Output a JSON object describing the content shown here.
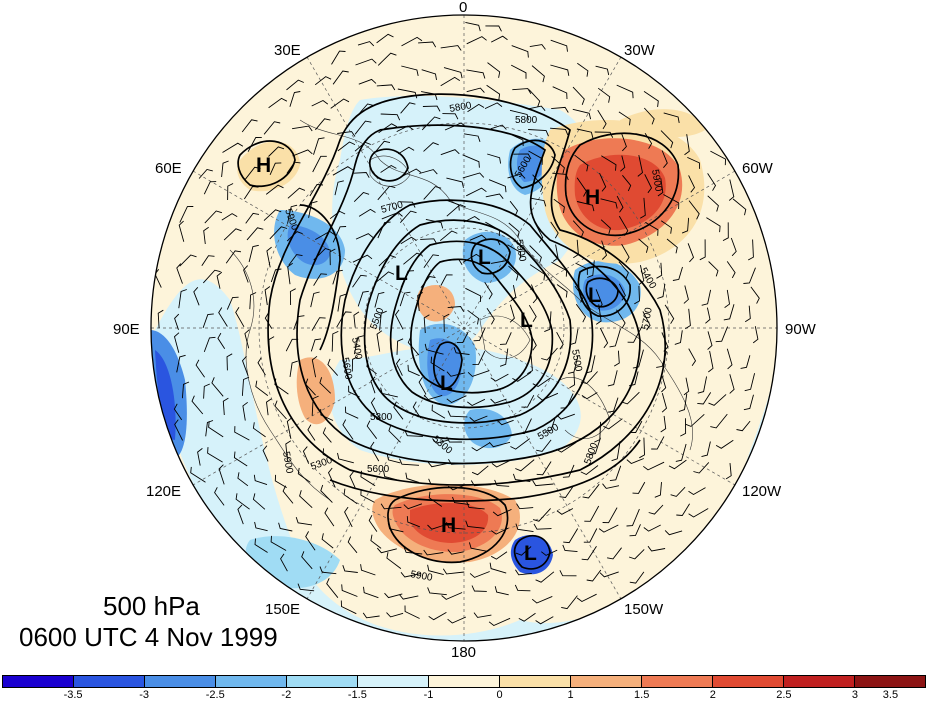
{
  "map": {
    "projection": "north-polar-stereographic",
    "longitude_labels": [
      "0",
      "30W",
      "60W",
      "90W",
      "120W",
      "150W",
      "180",
      "150E",
      "120E",
      "90E",
      "60E",
      "30E"
    ],
    "contour_labels": [
      "5800",
      "5800",
      "5900",
      "5900",
      "5700",
      "5600",
      "5500",
      "5400",
      "5300",
      "5300",
      "5500",
      "5600",
      "5800",
      "5900",
      "5900",
      "5600",
      "5700",
      "5900",
      "5500",
      "5400",
      "5300"
    ],
    "centers": [
      {
        "type": "H",
        "color": "#d84a2a"
      },
      {
        "type": "H",
        "color": "#e9604a"
      },
      {
        "type": "H",
        "color": "#e04a32"
      },
      {
        "type": "L",
        "color": "#4a8ee6"
      },
      {
        "type": "L",
        "color": "#2f6fe0"
      },
      {
        "type": "L",
        "color": "#4a8ee6"
      },
      {
        "type": "L",
        "color": "#2f6fe0"
      },
      {
        "type": "L",
        "color": "#2b5fd4"
      },
      {
        "type": "L",
        "color": "#3b7be2"
      }
    ]
  },
  "caption": {
    "level": "500 hPa",
    "time": "0600 UTC 4 Nov 1999"
  },
  "colorbar": {
    "colors": [
      "#1a00d0",
      "#2a55e0",
      "#4a8ee6",
      "#70b8ee",
      "#a0dcf4",
      "#d6f2fa",
      "#fdf4da",
      "#fae0a8",
      "#f5b07c",
      "#ee7a54",
      "#e04a32",
      "#c02020",
      "#8c1414"
    ],
    "labels": [
      "-3.5",
      "-3",
      "-2.5",
      "-2",
      "-1.5",
      "-1",
      "0",
      "1",
      "1.5",
      "2",
      "2.5",
      "3",
      "3.5"
    ]
  }
}
